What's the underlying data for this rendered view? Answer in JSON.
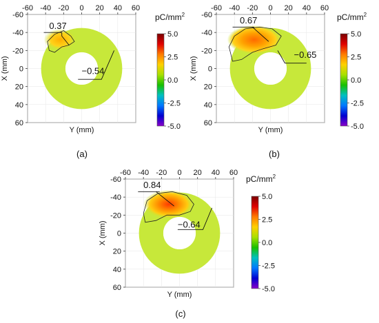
{
  "colorbar": {
    "unit": "pC/mm",
    "unit_superscript": "2",
    "ticks": [
      "5.0",
      "2.5",
      "0.0",
      "-2.5",
      "-5.0"
    ]
  },
  "colors": {
    "ring_fill": "#c7e83a",
    "hot_core": "#ff3a00",
    "hot_mid": "#ff9a00",
    "hot_edge": "#ffd31a",
    "colorbar_stops": [
      "#7a0000",
      "#e00000",
      "#ff7a00",
      "#ffd000",
      "#a8e000",
      "#18c000",
      "#00c0c0",
      "#0078ff",
      "#0000d0",
      "#8a00c8"
    ]
  },
  "chart_data": [
    {
      "type": "heatmap",
      "caption": "(a)",
      "xlabel": "Y (mm)",
      "ylabel": "X (mm)",
      "x_ticks": [
        "-60",
        "-40",
        "-20",
        "0",
        "20",
        "40",
        "60"
      ],
      "y_ticks": [
        "-60",
        "-40",
        "-20",
        "0",
        "20",
        "40",
        "60"
      ],
      "xlim": [
        -60,
        60
      ],
      "ylim": [
        -60,
        60
      ],
      "annular_region": {
        "inner_radius_mm": 18,
        "outer_radius_mm": 45
      },
      "colorbar_range": [
        -5.0,
        5.0
      ],
      "annotations": [
        {
          "label": "0.37",
          "value": 0.37
        },
        {
          "label": "−0.54",
          "value": -0.54
        }
      ]
    },
    {
      "type": "heatmap",
      "caption": "(b)",
      "xlabel": "Y (mm)",
      "ylabel": "X (mm)",
      "x_ticks": [
        "-60",
        "-40",
        "-20",
        "0",
        "20",
        "40",
        "60"
      ],
      "y_ticks": [
        "-60",
        "-40",
        "-20",
        "0",
        "20",
        "40",
        "60"
      ],
      "xlim": [
        -60,
        60
      ],
      "ylim": [
        -60,
        60
      ],
      "annular_region": {
        "inner_radius_mm": 18,
        "outer_radius_mm": 45
      },
      "colorbar_range": [
        -5.0,
        5.0
      ],
      "annotations": [
        {
          "label": "0.67",
          "value": 0.67
        },
        {
          "label": "−0.65",
          "value": -0.65
        }
      ]
    },
    {
      "type": "heatmap",
      "caption": "(c)",
      "xlabel": "Y (mm)",
      "ylabel": "X (mm)",
      "x_ticks": [
        "-60",
        "-40",
        "-20",
        "0",
        "20",
        "40",
        "60"
      ],
      "y_ticks": [
        "-60",
        "-40",
        "-20",
        "0",
        "20",
        "40",
        "60"
      ],
      "xlim": [
        -60,
        60
      ],
      "ylim": [
        -60,
        60
      ],
      "annular_region": {
        "inner_radius_mm": 18,
        "outer_radius_mm": 45
      },
      "colorbar_range": [
        -5.0,
        5.0
      ],
      "annotations": [
        {
          "label": "0.84",
          "value": 0.84
        },
        {
          "label": "−0.64",
          "value": -0.64
        }
      ]
    }
  ]
}
